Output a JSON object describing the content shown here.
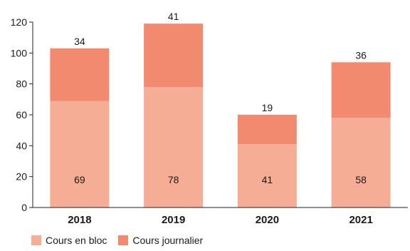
{
  "chart_data": {
    "type": "bar",
    "stacked": true,
    "categories": [
      "2018",
      "2019",
      "2020",
      "2021"
    ],
    "series": [
      {
        "name": "Cours en bloc",
        "values": [
          69,
          78,
          41,
          58
        ],
        "color": "#f6ad95"
      },
      {
        "name": "Cours journalier",
        "values": [
          34,
          41,
          19,
          36
        ],
        "color": "#f28a6f"
      }
    ],
    "title": "",
    "xlabel": "",
    "ylabel": "",
    "ylim": [
      0,
      120
    ],
    "yticks": [
      0,
      20,
      40,
      60,
      80,
      100,
      120
    ],
    "grid": false,
    "legend": "bottom-left"
  }
}
